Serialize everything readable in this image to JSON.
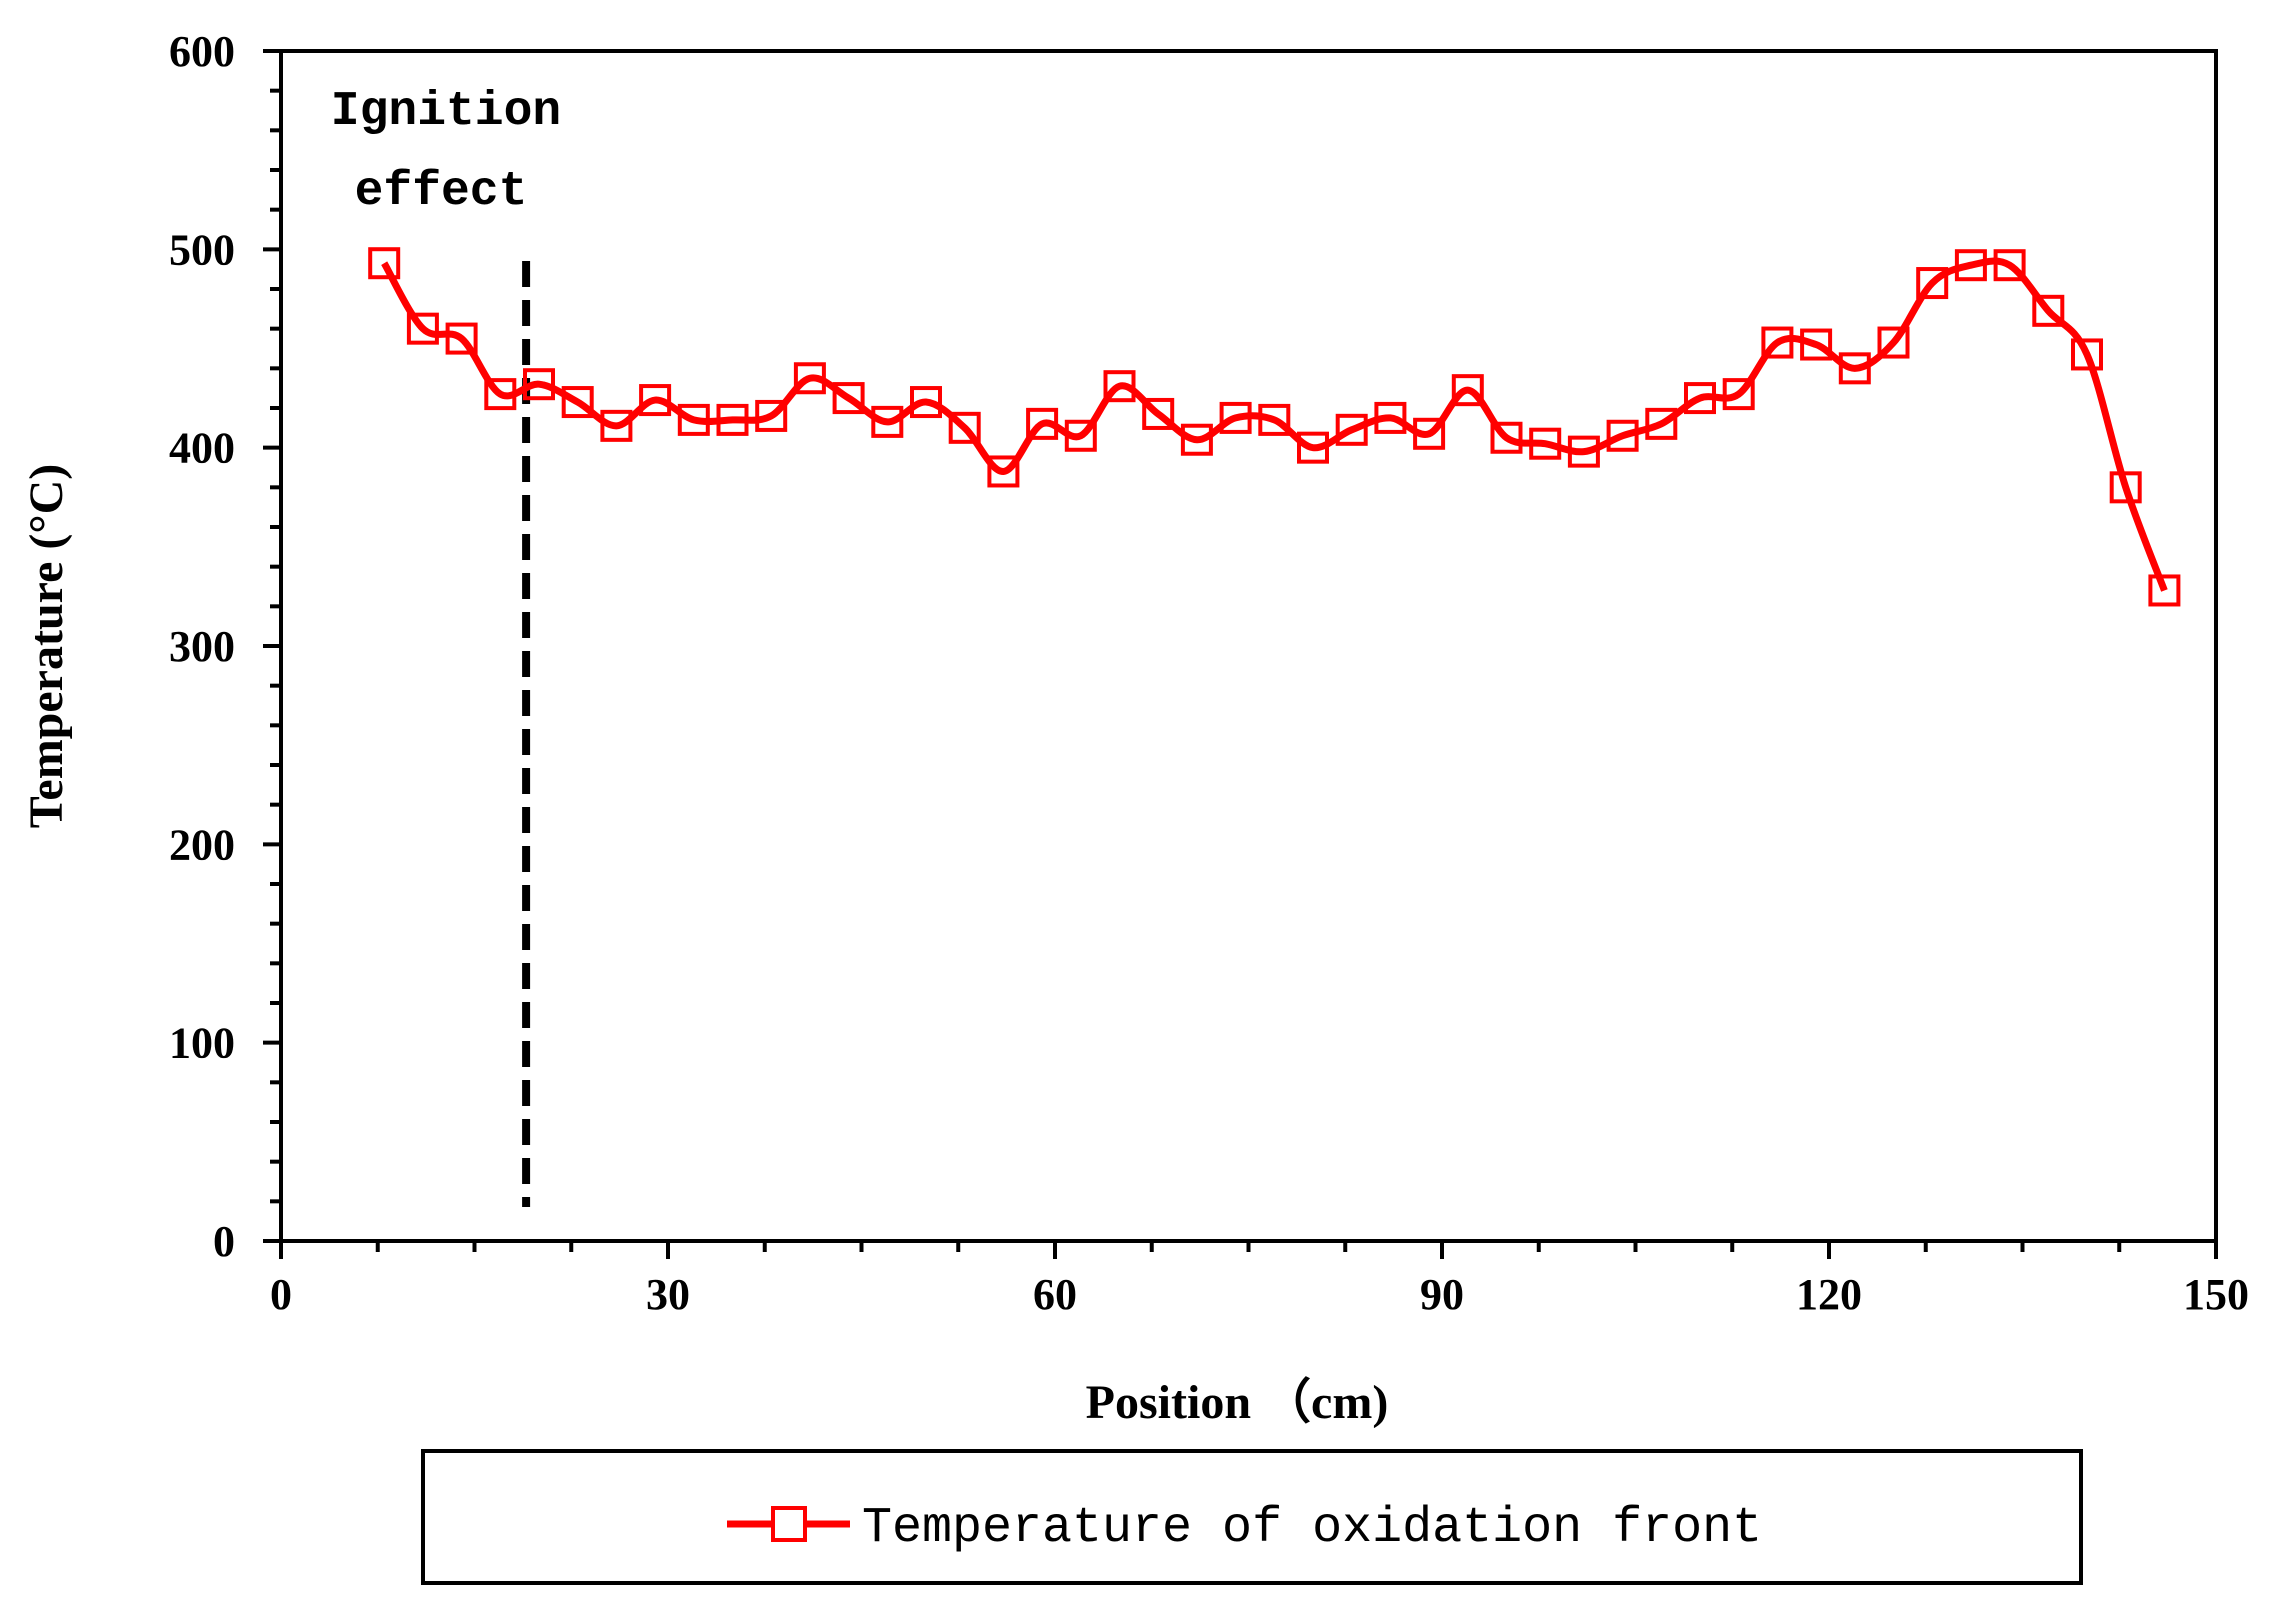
{
  "chart_data": {
    "type": "line",
    "title": "",
    "xlabel": "Position （cm)",
    "ylabel": "Temperature (°C)",
    "xlim": [
      0,
      150
    ],
    "ylim": [
      0,
      600
    ],
    "x_ticks": [
      0,
      30,
      60,
      90,
      120,
      150
    ],
    "y_ticks": [
      0,
      100,
      200,
      300,
      400,
      500,
      600
    ],
    "grid": false,
    "legend_position": "bottom",
    "annotation": {
      "lines": [
        "Ignition",
        "effect"
      ],
      "marker_x": 19
    },
    "series": [
      {
        "name": "Temperature of oxidation front",
        "color": "#ff0000",
        "marker": "square",
        "x": [
          8,
          11,
          14,
          17,
          20,
          23,
          26,
          29,
          32,
          35,
          38,
          41,
          44,
          47,
          50,
          53,
          56,
          59,
          62,
          65,
          68,
          71,
          74,
          77,
          80,
          83,
          86,
          89,
          92,
          95,
          98,
          101,
          104,
          107,
          110,
          113,
          116,
          119,
          122,
          125,
          128,
          131,
          134,
          137,
          140,
          143,
          146
        ],
        "y": [
          493,
          460,
          455,
          427,
          432,
          423,
          411,
          424,
          414,
          414,
          416,
          435,
          425,
          413,
          423,
          410,
          388,
          412,
          406,
          431,
          417,
          404,
          415,
          414,
          400,
          409,
          415,
          407,
          429,
          405,
          402,
          398,
          406,
          412,
          425,
          427,
          453,
          452,
          440,
          453,
          483,
          492,
          492,
          469,
          447,
          380,
          328
        ]
      }
    ]
  }
}
